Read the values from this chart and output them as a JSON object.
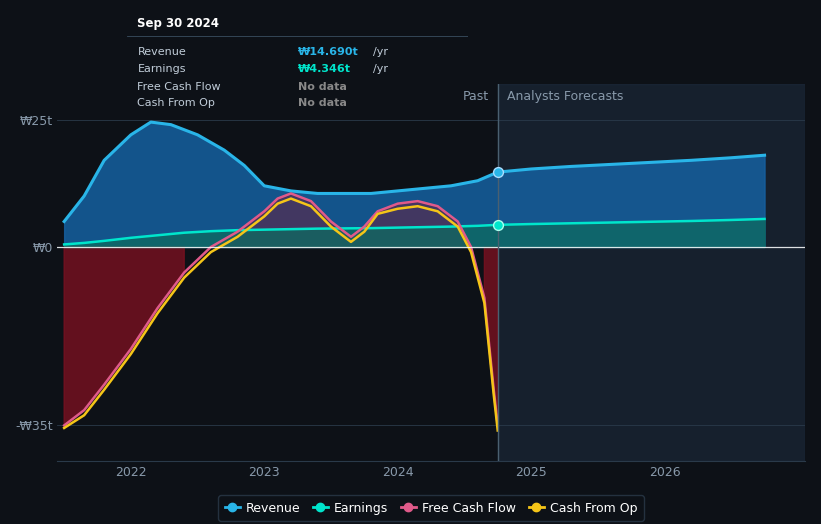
{
  "background_color": "#0d1117",
  "plot_bg_color": "#0d1117",
  "divider_x": 2024.75,
  "past_label": "Past",
  "forecast_label": "Analysts Forecasts",
  "legend": [
    "Revenue",
    "Earnings",
    "Free Cash Flow",
    "Cash From Op"
  ],
  "legend_colors": [
    "#29b5e8",
    "#00e5cc",
    "#e05a8a",
    "#f5c518"
  ],
  "revenue": {
    "x": [
      2021.5,
      2021.65,
      2021.8,
      2022.0,
      2022.15,
      2022.3,
      2022.5,
      2022.7,
      2022.85,
      2023.0,
      2023.2,
      2023.4,
      2023.6,
      2023.8,
      2024.0,
      2024.2,
      2024.4,
      2024.6,
      2024.75,
      2025.0,
      2025.3,
      2025.6,
      2025.9,
      2026.2,
      2026.5,
      2026.75
    ],
    "y": [
      5,
      10,
      17,
      22,
      24.5,
      24,
      22,
      19,
      16,
      12,
      11,
      10.5,
      10.5,
      10.5,
      11,
      11.5,
      12,
      13,
      14.69,
      15.3,
      15.8,
      16.2,
      16.6,
      17.0,
      17.5,
      18.0
    ]
  },
  "earnings": {
    "x": [
      2021.5,
      2021.65,
      2021.8,
      2022.0,
      2022.2,
      2022.4,
      2022.6,
      2022.8,
      2023.0,
      2023.2,
      2023.4,
      2023.6,
      2023.8,
      2024.0,
      2024.2,
      2024.4,
      2024.6,
      2024.75,
      2025.0,
      2025.3,
      2025.6,
      2025.9,
      2026.2,
      2026.5,
      2026.75
    ],
    "y": [
      0.5,
      0.8,
      1.2,
      1.8,
      2.3,
      2.8,
      3.1,
      3.3,
      3.4,
      3.5,
      3.6,
      3.65,
      3.7,
      3.8,
      3.9,
      4.0,
      4.15,
      4.346,
      4.5,
      4.65,
      4.8,
      4.95,
      5.1,
      5.3,
      5.5
    ]
  },
  "free_cash_flow": {
    "x": [
      2021.5,
      2021.65,
      2021.8,
      2022.0,
      2022.2,
      2022.4,
      2022.6,
      2022.8,
      2023.0,
      2023.1,
      2023.2,
      2023.35,
      2023.5,
      2023.65,
      2023.75,
      2023.85,
      2024.0,
      2024.15,
      2024.3,
      2024.45,
      2024.55,
      2024.65,
      2024.72,
      2024.75
    ],
    "y": [
      -35,
      -32,
      -27,
      -20,
      -12,
      -5,
      0,
      3,
      7,
      9.5,
      10.5,
      9,
      5,
      2,
      4,
      7,
      8.5,
      9,
      8,
      5,
      0,
      -10,
      -28,
      -35
    ]
  },
  "cash_from_op": {
    "x": [
      2021.5,
      2021.65,
      2021.8,
      2022.0,
      2022.2,
      2022.4,
      2022.6,
      2022.8,
      2023.0,
      2023.1,
      2023.2,
      2023.35,
      2023.5,
      2023.65,
      2023.75,
      2023.85,
      2024.0,
      2024.15,
      2024.3,
      2024.45,
      2024.55,
      2024.65,
      2024.72,
      2024.75
    ],
    "y": [
      -35.5,
      -33,
      -28,
      -21,
      -13,
      -6,
      -1,
      2,
      6,
      8.5,
      9.5,
      8,
      4,
      1,
      3,
      6.5,
      7.5,
      8,
      7,
      4,
      -1,
      -11,
      -29,
      -36
    ]
  },
  "tooltip": {
    "title": "Sep 30 2024",
    "rows": [
      {
        "label": "Revenue",
        "value": "₩14.690t",
        "unit": "/yr",
        "color": "#29b5e8"
      },
      {
        "label": "Earnings",
        "value": "₩4.346t",
        "unit": "/yr",
        "color": "#00e5cc"
      },
      {
        "label": "Free Cash Flow",
        "value": "No data",
        "unit": "",
        "color": "#888888"
      },
      {
        "label": "Cash From Op",
        "value": "No data",
        "unit": "",
        "color": "#888888"
      }
    ]
  },
  "xlim": [
    2021.45,
    2027.05
  ],
  "ylim": [
    -42,
    32
  ],
  "yticks": [
    -35,
    0,
    25
  ],
  "ytick_labels": [
    "-₩35t",
    "₩0",
    "₩25t"
  ],
  "xticks": [
    2022,
    2023,
    2024,
    2025,
    2026
  ]
}
